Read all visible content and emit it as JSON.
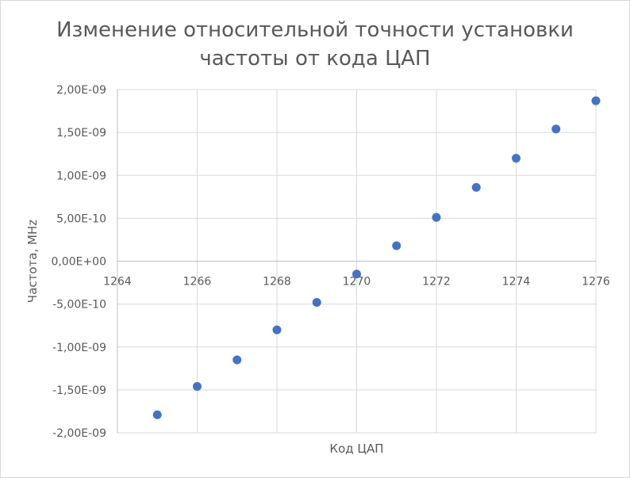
{
  "chart_data": {
    "type": "scatter",
    "title_lines": [
      "Изменение относительной точности установки",
      "частоты от кода ЦАП"
    ],
    "xlabel": "Код ЦАП",
    "ylabel": "Частота, MHz",
    "xlim": [
      1264,
      1276
    ],
    "ylim": [
      -2e-09,
      2e-09
    ],
    "x_ticks": [
      1264,
      1266,
      1268,
      1270,
      1272,
      1274,
      1276
    ],
    "x_tick_labels": [
      "1264",
      "1266",
      "1268",
      "1270",
      "1272",
      "1274",
      "1276"
    ],
    "y_ticks": [
      2e-09,
      1.5e-09,
      1e-09,
      5e-10,
      0,
      -5e-10,
      -1e-09,
      -1.5e-09,
      -2e-09
    ],
    "y_tick_labels": [
      "2,00E-09",
      "1,50E-09",
      "1,00E-09",
      "5,00E-10",
      "0,00E+00",
      "-5,00E-10",
      "-1,00E-09",
      "-1,50E-09",
      "-2,00E-09"
    ],
    "grid": true,
    "marker_color": "#4472c4",
    "x": [
      1265,
      1266,
      1267,
      1268,
      1269,
      1270,
      1271,
      1272,
      1273,
      1274,
      1275,
      1276
    ],
    "y": [
      -1.79e-09,
      -1.46e-09,
      -1.15e-09,
      -8e-10,
      -4.8e-10,
      -1.5e-10,
      1.8e-10,
      5.1e-10,
      8.6e-10,
      1.2e-09,
      1.54e-09,
      1.87e-09
    ]
  }
}
